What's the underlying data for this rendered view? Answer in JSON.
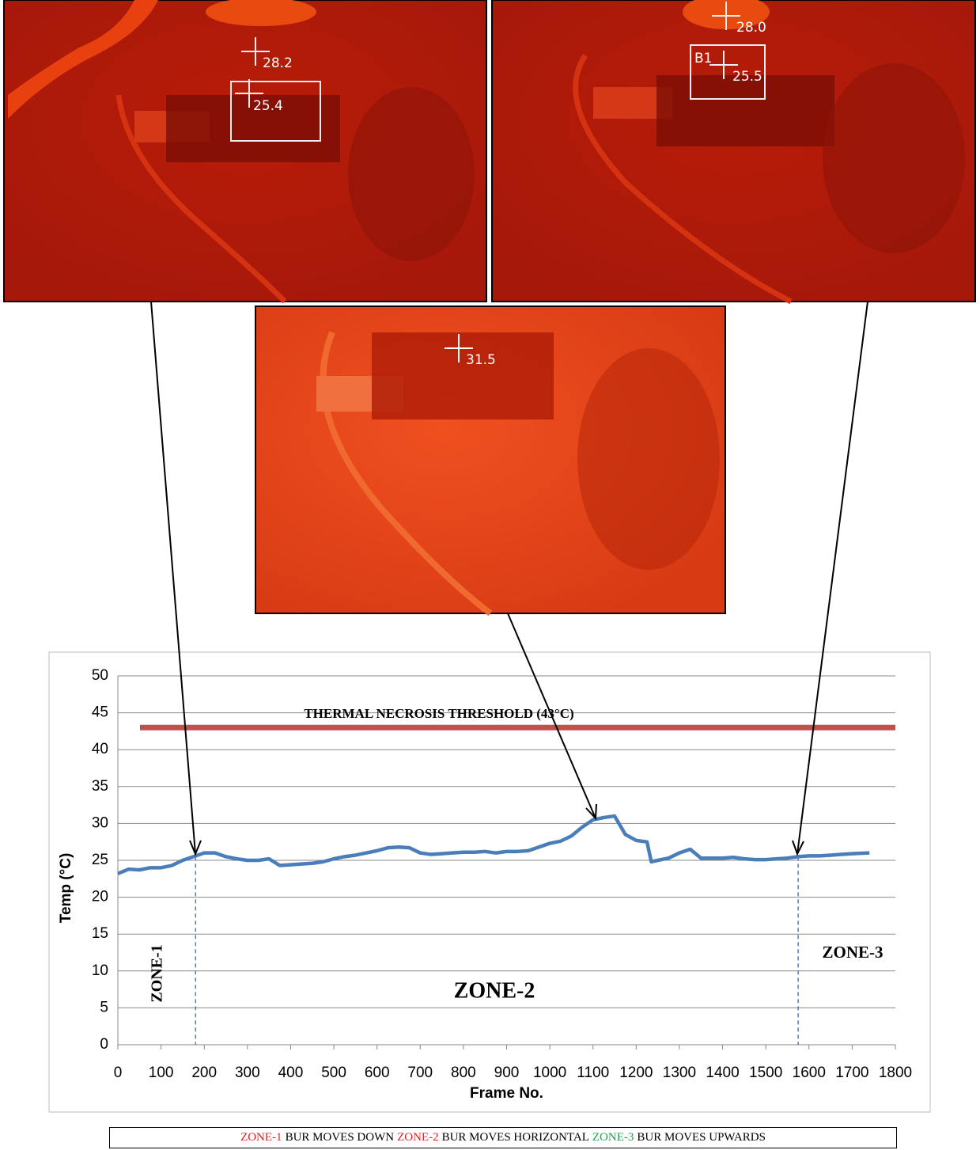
{
  "images": [
    {
      "labels": [
        "28.2",
        "25.4"
      ]
    },
    {
      "labels": [
        "28.0",
        "B1",
        "25.5"
      ]
    },
    {
      "labels": [
        "31.5"
      ]
    }
  ],
  "chart_data": {
    "type": "line",
    "x_label": "Frame No.",
    "y_label": "Temp (°C)",
    "x": [
      0,
      25,
      50,
      75,
      100,
      125,
      150,
      175,
      200,
      225,
      250,
      275,
      300,
      325,
      350,
      375,
      400,
      425,
      450,
      475,
      500,
      525,
      550,
      575,
      600,
      625,
      650,
      675,
      700,
      725,
      750,
      775,
      800,
      825,
      850,
      875,
      900,
      925,
      950,
      975,
      1000,
      1025,
      1050,
      1075,
      1100,
      1125,
      1150,
      1175,
      1200,
      1225,
      1235,
      1250,
      1275,
      1300,
      1325,
      1350,
      1375,
      1400,
      1425,
      1450,
      1475,
      1500,
      1525,
      1550,
      1575,
      1600,
      1625,
      1650,
      1675,
      1700,
      1740
    ],
    "values": [
      23.2,
      23.8,
      23.7,
      24,
      24,
      24.3,
      25,
      25.5,
      26,
      26,
      25.5,
      25.2,
      25,
      25,
      25.2,
      24.3,
      24.4,
      24.5,
      24.6,
      24.8,
      25.2,
      25.5,
      25.7,
      26,
      26.3,
      26.7,
      26.8,
      26.7,
      26,
      25.8,
      25.9,
      26,
      26.1,
      26.1,
      26.2,
      26,
      26.2,
      26.2,
      26.3,
      26.8,
      27.3,
      27.6,
      28.3,
      29.5,
      30.5,
      30.8,
      31,
      28.5,
      27.7,
      27.5,
      24.8,
      25,
      25.3,
      26,
      26.5,
      25.3,
      25.3,
      25.3,
      25.4,
      25.2,
      25.1,
      25.1,
      25.2,
      25.3,
      25.5,
      25.6,
      25.6,
      25.7,
      25.8,
      25.9,
      26
    ],
    "color": "#4a7ebb",
    "xlim": [
      0,
      1800
    ],
    "xticks": [
      0,
      100,
      200,
      300,
      400,
      500,
      600,
      700,
      800,
      900,
      1000,
      1100,
      1200,
      1300,
      1400,
      1500,
      1600,
      1700,
      1800
    ],
    "ylim": [
      0,
      50
    ],
    "yticks": [
      0,
      5,
      10,
      15,
      20,
      25,
      30,
      35,
      40,
      45,
      50
    ],
    "grid": true,
    "threshold": {
      "value": 43,
      "label": "THERMAL NECROSIS THRESHOLD (43°C)",
      "color": "#c0504d"
    },
    "zone_boundaries": [
      180,
      1575
    ],
    "zone_labels": [
      "ZONE-1",
      "ZONE-2",
      "ZONE-3"
    ]
  },
  "caption": [
    {
      "text": "ZONE-1",
      "color": "#e02020"
    },
    {
      "text": "BUR MOVES DOWN",
      "color": "#000000"
    },
    {
      "text": "ZONE-2",
      "color": "#e02020"
    },
    {
      "text": "BUR MOVES HORIZONTAL",
      "color": "#000000"
    },
    {
      "text": "ZONE-3",
      "color": "#1aa34a"
    },
    {
      "text": "BUR MOVES UPWARDS",
      "color": "#000000"
    }
  ]
}
